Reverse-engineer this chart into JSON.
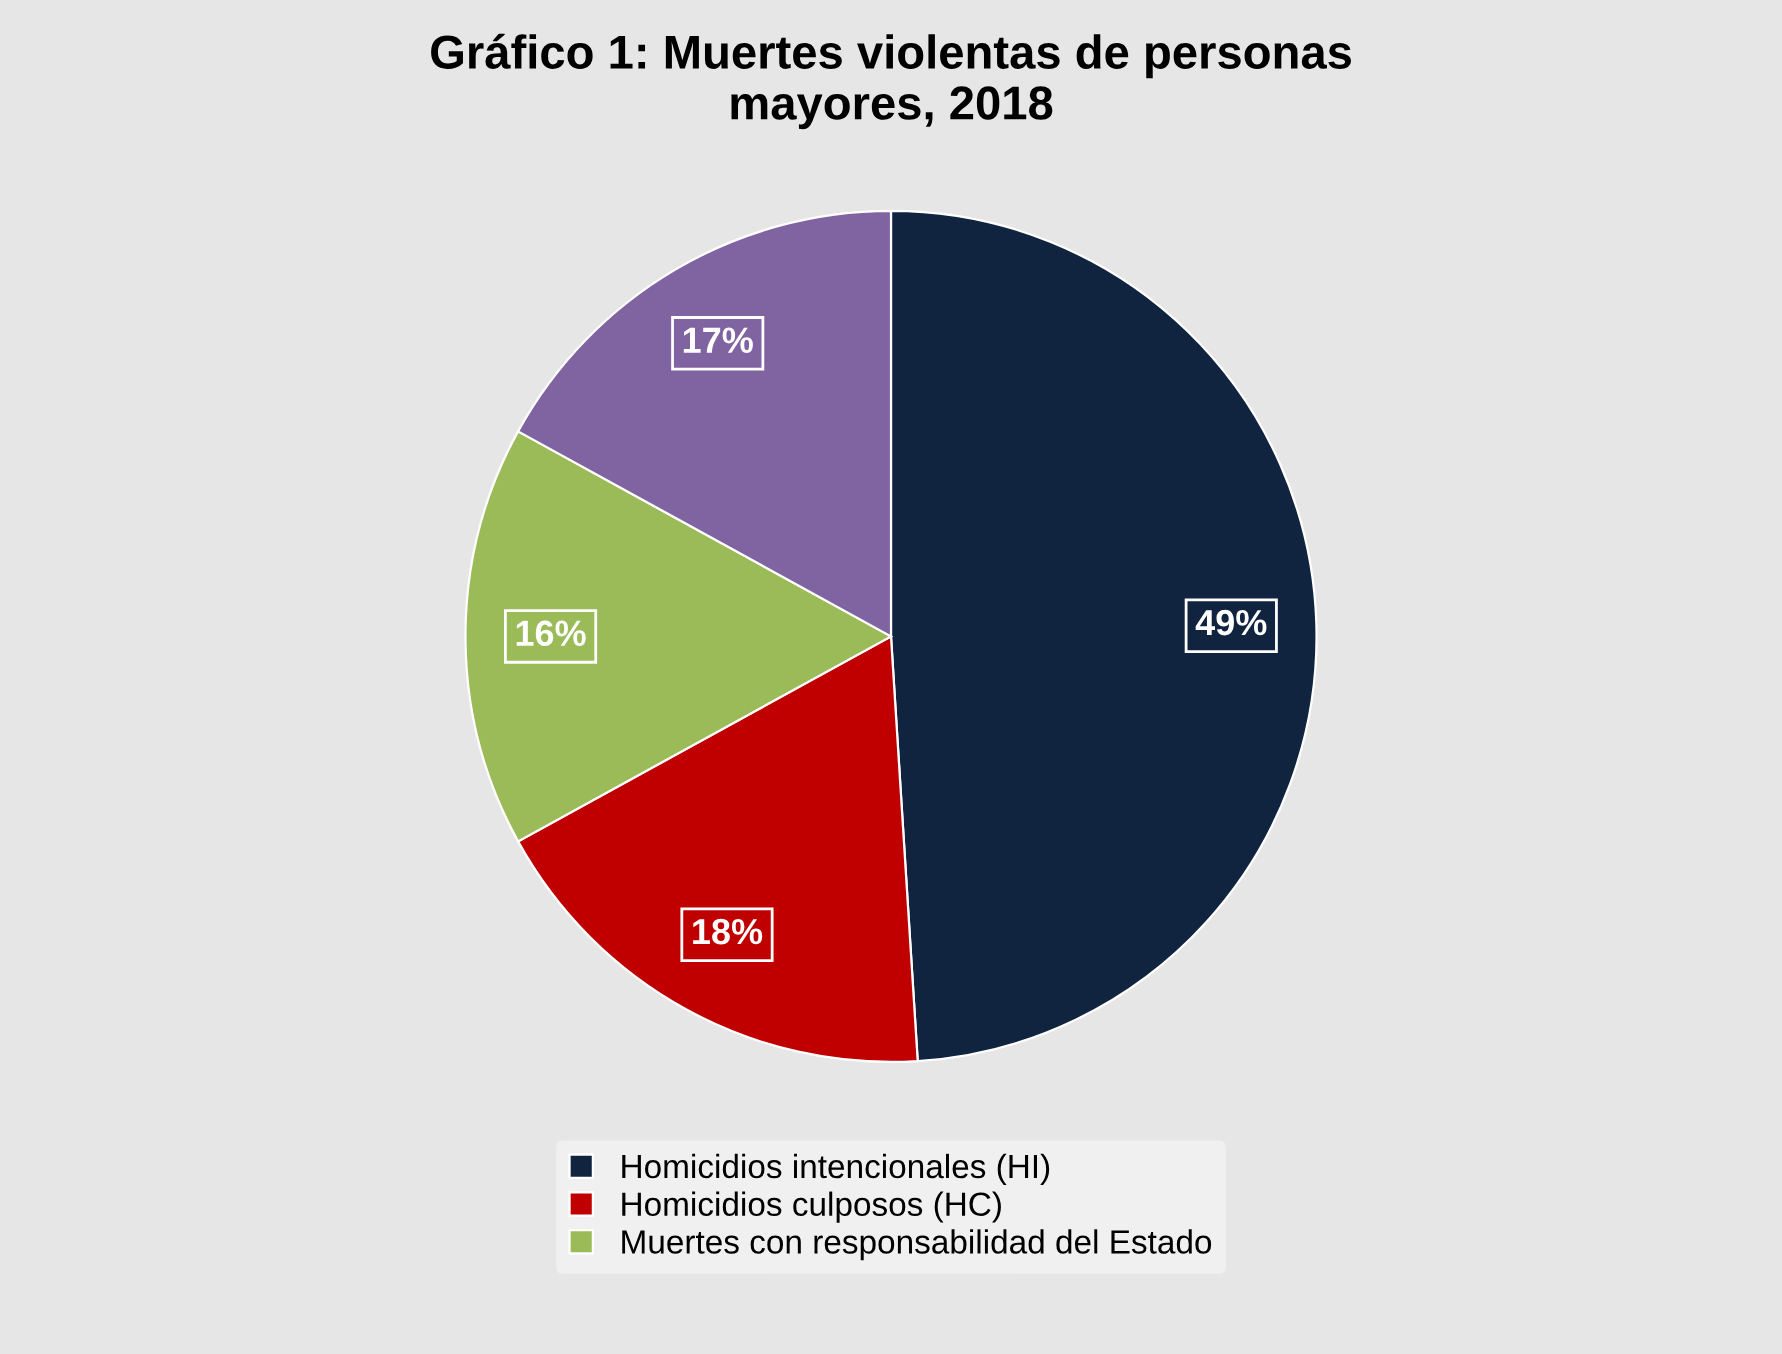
{
  "chart_data": {
    "type": "pie",
    "title": "Gráfico 1: Muertes violentas de personas\nmayores, 2018",
    "categories": [
      "Homicidios intencionales (HI)",
      "Homicidios culposos (HC)",
      "Muertes con responsabilidad del Estado",
      null
    ],
    "values": [
      49,
      18,
      16,
      17
    ],
    "value_labels": [
      "49%",
      "18%",
      "16%",
      "17%"
    ],
    "colors": [
      "#10233f",
      "#c00000",
      "#9bbb59",
      "#8064a2"
    ],
    "legend": "bottom"
  }
}
